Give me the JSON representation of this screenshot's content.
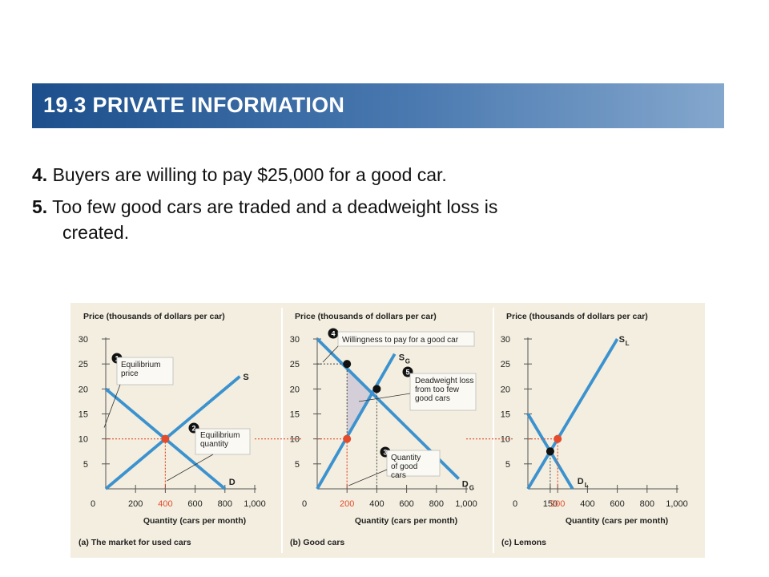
{
  "slide": {
    "title": "19.3 PRIVATE INFORMATION",
    "bullets": [
      {
        "num": "4.",
        "text": "Buyers are willing to pay $25,000 for a good car.",
        "cont": ""
      },
      {
        "num": "5.",
        "text": "Too few good cars are traded and a deadweight loss is",
        "cont": "created."
      }
    ]
  },
  "colors": {
    "panel_bg": "#f3eedf",
    "curve": "#3b92cf",
    "equilibrium_red": "#e34b2c",
    "guide_red": "#e34b2c",
    "point_black": "#111111",
    "deadweight_fill": "#cfcad6"
  },
  "chart_data": [
    {
      "type": "line",
      "panel_label": "(a) The market for used cars",
      "ylabel": "Price (thousands of dollars per car)",
      "xlabel": "Quantity (cars per month)",
      "xlim": [
        0,
        1000
      ],
      "ylim": [
        0,
        30
      ],
      "x_ticks": [
        "0",
        "200",
        "400",
        "600",
        "800",
        "1,000"
      ],
      "y_ticks": [
        "5",
        "10",
        "15",
        "20",
        "25",
        "30"
      ],
      "series": [
        {
          "name": "S",
          "points": [
            [
              0,
              0
            ],
            [
              900,
              22.5
            ]
          ]
        },
        {
          "name": "D",
          "points": [
            [
              0,
              20
            ],
            [
              800,
              0
            ]
          ]
        }
      ],
      "equilibrium": {
        "x": 400,
        "y": 10
      },
      "annotations": [
        {
          "num": "1",
          "text": "Equilibrium price"
        },
        {
          "num": "2",
          "text": "Equilibrium quantity"
        }
      ]
    },
    {
      "type": "line",
      "panel_label": "(b) Good cars",
      "ylabel": "Price (thousands of dollars per car)",
      "xlabel": "Quantity (cars per month)",
      "xlim": [
        0,
        1000
      ],
      "ylim": [
        0,
        30
      ],
      "x_ticks": [
        "0",
        "200",
        "400",
        "600",
        "800",
        "1,000"
      ],
      "y_ticks": [
        "5",
        "10",
        "15",
        "20",
        "25",
        "30"
      ],
      "series": [
        {
          "name": "SG",
          "points": [
            [
              0,
              0
            ],
            [
              520,
              27
            ]
          ]
        },
        {
          "name": "DG",
          "points": [
            [
              0,
              30
            ],
            [
              950,
              2
            ]
          ]
        }
      ],
      "points": [
        {
          "x": 200,
          "y": 10,
          "kind": "traded"
        },
        {
          "x": 200,
          "y": 25,
          "kind": "willingness"
        },
        {
          "x": 400,
          "y": 20,
          "kind": "efficient"
        }
      ],
      "annotations": [
        {
          "num": "4",
          "text": "Willingness to pay for a good car"
        },
        {
          "num": "5",
          "text": "Deadweight loss from too few good cars"
        },
        {
          "num": "3",
          "text": "Quantity of good cars"
        }
      ]
    },
    {
      "type": "line",
      "panel_label": "(c) Lemons",
      "ylabel": "Price (thousands of dollars per car)",
      "xlabel": "Quantity (cars per month)",
      "xlim": [
        0,
        1000
      ],
      "ylim": [
        0,
        30
      ],
      "x_ticks": [
        "0",
        "150",
        "200",
        "400",
        "600",
        "800",
        "1,000"
      ],
      "y_ticks": [
        "5",
        "10",
        "15",
        "20",
        "25",
        "30"
      ],
      "series": [
        {
          "name": "SL",
          "points": [
            [
              0,
              0
            ],
            [
              600,
              30
            ]
          ]
        },
        {
          "name": "DL",
          "points": [
            [
              0,
              15
            ],
            [
              300,
              0
            ]
          ]
        }
      ],
      "points": [
        {
          "x": 200,
          "y": 10,
          "kind": "traded"
        },
        {
          "x": 150,
          "y": 7.5,
          "kind": "efficient"
        }
      ]
    }
  ]
}
